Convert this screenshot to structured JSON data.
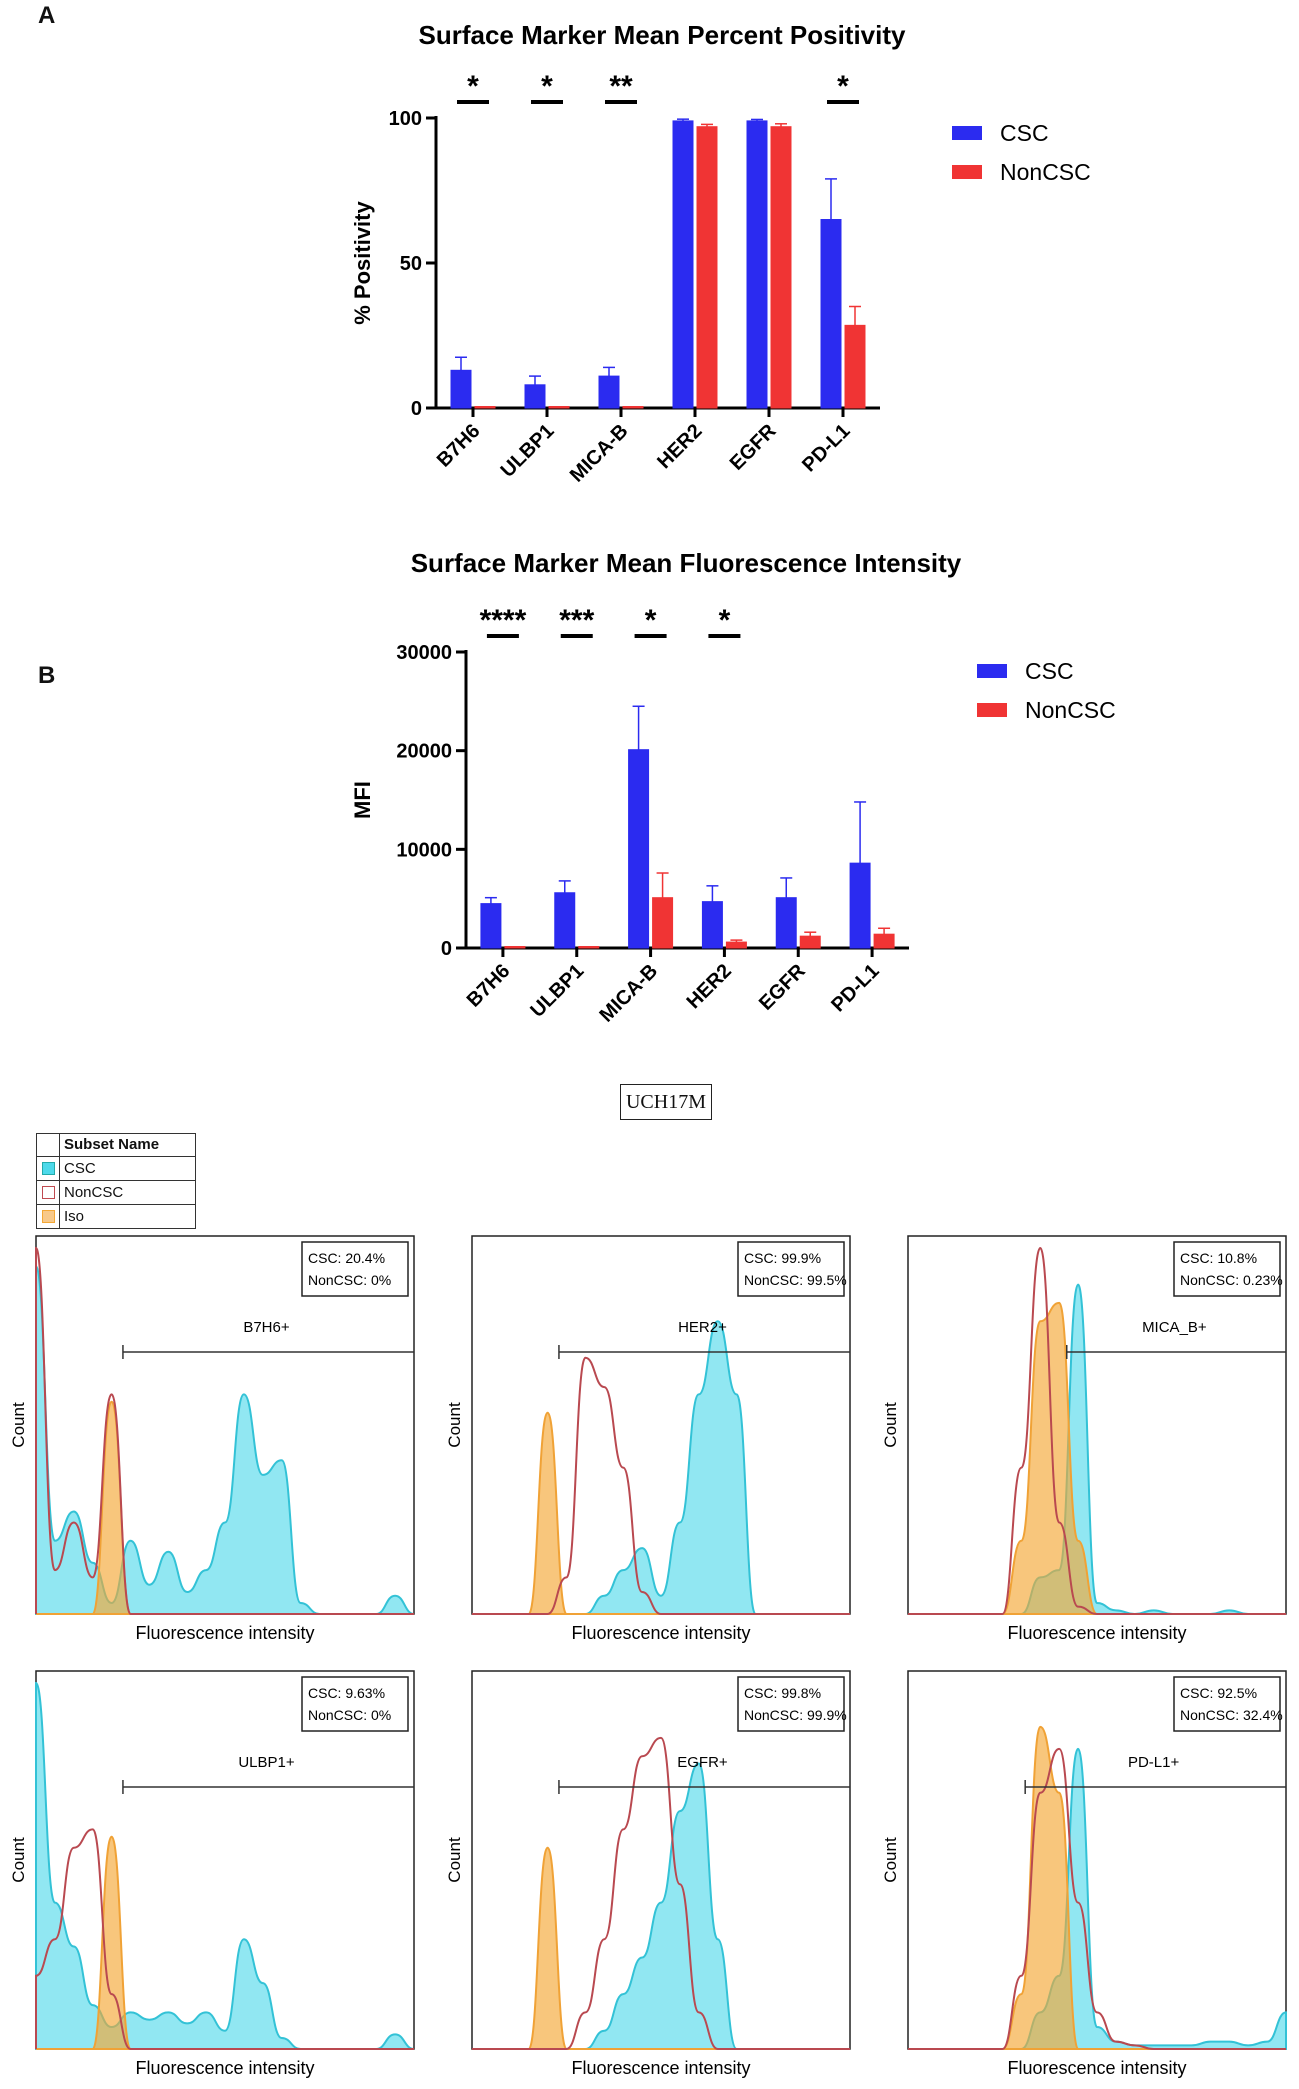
{
  "panel_labels": {
    "a": "A",
    "b": "B"
  },
  "sample_label": "UCH17M",
  "subset_legend": {
    "header": "Subset Name",
    "items": [
      {
        "name": "CSC",
        "color": "#4dd9ea"
      },
      {
        "name": "NonCSC",
        "color": "#c04a50"
      },
      {
        "name": "Iso",
        "color": "#f4a836"
      }
    ]
  },
  "histogram_axis": {
    "x_label": "Fluorescence intensity",
    "y_label": "Count"
  },
  "chart_data": [
    {
      "type": "bar",
      "title": "Surface Marker Mean Percent Positivity",
      "ylabel": "% Positivity",
      "xlabel": "",
      "categories": [
        "B7H6",
        "ULBP1",
        "MICA-B",
        "HER2",
        "EGFR",
        "PD-L1"
      ],
      "ylim": [
        0,
        100
      ],
      "yticks": [
        0,
        50,
        100
      ],
      "series": [
        {
          "name": "CSC",
          "color": "#2b2bf0",
          "values": [
            13,
            8,
            11,
            99,
            99,
            65
          ],
          "errors": [
            4.5,
            3,
            3,
            0.6,
            0.5,
            14
          ]
        },
        {
          "name": "NonCSC",
          "color": "#f03434",
          "values": [
            0,
            0,
            0,
            97,
            97,
            28.5
          ],
          "errors": [
            0,
            0,
            0,
            0.8,
            1,
            6.5
          ]
        }
      ],
      "significance": [
        "*",
        "*",
        "**",
        "",
        "",
        "*"
      ],
      "legend": "right"
    },
    {
      "type": "bar",
      "title": "Surface Marker Mean Fluorescence  Intensity",
      "ylabel": "MFI",
      "xlabel": "",
      "categories": [
        "B7H6",
        "ULBP1",
        "MICA-B",
        "HER2",
        "EGFR",
        "PD-L1"
      ],
      "ylim": [
        0,
        30000
      ],
      "yticks": [
        0,
        10000,
        20000,
        30000
      ],
      "series": [
        {
          "name": "CSC",
          "color": "#2b2bf0",
          "values": [
            4500,
            5600,
            20100,
            4700,
            5100,
            8600
          ],
          "errors": [
            600,
            1200,
            4400,
            1600,
            2000,
            6200
          ]
        },
        {
          "name": "NonCSC",
          "color": "#f03434",
          "values": [
            100,
            50,
            5100,
            600,
            1200,
            1400
          ],
          "errors": [
            0,
            0,
            2500,
            200,
            400,
            600
          ]
        }
      ],
      "significance": [
        "****",
        "***",
        "*",
        "*",
        "",
        ""
      ],
      "legend": "right"
    },
    {
      "type": "area",
      "marker": "B7H6",
      "gate_label": "B7H6+",
      "stats": [
        "CSC: 20.4%",
        "NonCSC: 0%"
      ],
      "x": [
        0,
        5,
        10,
        15,
        20,
        25,
        30,
        35,
        40,
        45,
        50,
        55,
        60,
        65,
        70,
        75,
        80,
        85,
        90,
        95,
        100
      ],
      "gate_range": [
        23,
        100
      ],
      "series": [
        {
          "name": "CSC",
          "values": [
            95,
            20,
            28,
            14,
            3,
            20,
            8,
            17,
            6,
            12,
            25,
            60,
            38,
            42,
            3,
            0,
            0,
            0,
            0,
            5,
            0
          ]
        },
        {
          "name": "NonCSC",
          "values": [
            100,
            12,
            25,
            10,
            60,
            0,
            0,
            0,
            0,
            0,
            0,
            0,
            0,
            0,
            0,
            0,
            0,
            0,
            0,
            0,
            0
          ]
        },
        {
          "name": "Iso",
          "values": [
            0,
            0,
            0,
            0,
            58,
            0,
            0,
            0,
            0,
            0,
            0,
            0,
            0,
            0,
            0,
            0,
            0,
            0,
            0,
            0,
            0
          ]
        }
      ]
    },
    {
      "type": "area",
      "marker": "HER2",
      "gate_label": "HER2+",
      "stats": [
        "CSC: 99.9%",
        "NonCSC: 99.5%"
      ],
      "x": [
        0,
        5,
        10,
        15,
        20,
        25,
        30,
        35,
        40,
        45,
        50,
        55,
        60,
        65,
        70,
        75,
        80,
        85,
        90,
        95,
        100
      ],
      "gate_range": [
        23,
        100
      ],
      "series": [
        {
          "name": "CSC",
          "values": [
            0,
            0,
            0,
            0,
            0,
            0,
            0,
            5,
            12,
            18,
            5,
            25,
            60,
            80,
            60,
            0,
            0,
            0,
            0,
            0,
            0
          ]
        },
        {
          "name": "NonCSC",
          "values": [
            0,
            0,
            0,
            0,
            0,
            10,
            70,
            62,
            40,
            6,
            0,
            0,
            0,
            0,
            0,
            0,
            0,
            0,
            0,
            0,
            0
          ]
        },
        {
          "name": "Iso",
          "values": [
            0,
            0,
            0,
            0,
            55,
            0,
            0,
            0,
            0,
            0,
            0,
            0,
            0,
            0,
            0,
            0,
            0,
            0,
            0,
            0,
            0
          ]
        }
      ]
    },
    {
      "type": "area",
      "marker": "MICA-B",
      "gate_label": "MICA_B+",
      "stats": [
        "CSC: 10.8%",
        "NonCSC: 0.23%"
      ],
      "x": [
        0,
        5,
        10,
        15,
        20,
        25,
        30,
        35,
        40,
        45,
        50,
        55,
        60,
        65,
        70,
        75,
        80,
        85,
        90,
        95,
        100
      ],
      "gate_range": [
        42,
        100
      ],
      "series": [
        {
          "name": "CSC",
          "values": [
            0,
            0,
            0,
            0,
            0,
            0,
            0,
            10,
            12,
            90,
            3,
            1,
            0,
            1,
            0,
            0,
            0,
            1,
            0,
            0,
            0
          ]
        },
        {
          "name": "NonCSC",
          "values": [
            0,
            0,
            0,
            0,
            0,
            0,
            40,
            100,
            25,
            2,
            0,
            0,
            0,
            0,
            0,
            0,
            0,
            0,
            0,
            0,
            0
          ]
        },
        {
          "name": "Iso",
          "values": [
            0,
            0,
            0,
            0,
            0,
            0,
            20,
            80,
            85,
            20,
            0,
            0,
            0,
            0,
            0,
            0,
            0,
            0,
            0,
            0,
            0
          ]
        }
      ]
    },
    {
      "type": "area",
      "marker": "ULBP1",
      "gate_label": "ULBP1+",
      "stats": [
        "CSC: 9.63%",
        "NonCSC: 0%"
      ],
      "x": [
        0,
        5,
        10,
        15,
        20,
        25,
        30,
        35,
        40,
        45,
        50,
        55,
        60,
        65,
        70,
        75,
        80,
        85,
        90,
        95,
        100
      ],
      "gate_range": [
        23,
        100
      ],
      "series": [
        {
          "name": "CSC",
          "values": [
            100,
            40,
            28,
            12,
            6,
            10,
            8,
            10,
            7,
            10,
            5,
            30,
            18,
            3,
            0,
            0,
            0,
            0,
            0,
            4,
            0
          ]
        },
        {
          "name": "NonCSC",
          "values": [
            20,
            30,
            55,
            60,
            15,
            0,
            0,
            0,
            0,
            0,
            0,
            0,
            0,
            0,
            0,
            0,
            0,
            0,
            0,
            0,
            0
          ]
        },
        {
          "name": "Iso",
          "values": [
            0,
            0,
            0,
            0,
            58,
            0,
            0,
            0,
            0,
            0,
            0,
            0,
            0,
            0,
            0,
            0,
            0,
            0,
            0,
            0,
            0
          ]
        }
      ]
    },
    {
      "type": "area",
      "marker": "EGFR",
      "gate_label": "EGFR+",
      "stats": [
        "CSC: 99.8%",
        "NonCSC: 99.9%"
      ],
      "x": [
        0,
        5,
        10,
        15,
        20,
        25,
        30,
        35,
        40,
        45,
        50,
        55,
        60,
        65,
        70,
        75,
        80,
        85,
        90,
        95,
        100
      ],
      "gate_range": [
        23,
        100
      ],
      "series": [
        {
          "name": "CSC",
          "values": [
            0,
            0,
            0,
            0,
            0,
            0,
            0,
            5,
            15,
            25,
            40,
            65,
            78,
            30,
            0,
            0,
            0,
            0,
            0,
            0,
            0
          ]
        },
        {
          "name": "NonCSC",
          "values": [
            0,
            0,
            0,
            0,
            0,
            0,
            10,
            30,
            60,
            80,
            85,
            45,
            10,
            0,
            0,
            0,
            0,
            0,
            0,
            0,
            0
          ]
        },
        {
          "name": "Iso",
          "values": [
            0,
            0,
            0,
            0,
            55,
            0,
            0,
            0,
            0,
            0,
            0,
            0,
            0,
            0,
            0,
            0,
            0,
            0,
            0,
            0,
            0
          ]
        }
      ]
    },
    {
      "type": "area",
      "marker": "PD-L1",
      "gate_label": "PD-L1+",
      "stats": [
        "CSC: 92.5%",
        "NonCSC: 32.4%"
      ],
      "x": [
        0,
        5,
        10,
        15,
        20,
        25,
        30,
        35,
        40,
        45,
        50,
        55,
        60,
        65,
        70,
        75,
        80,
        85,
        90,
        95,
        100
      ],
      "gate_range": [
        31,
        100
      ],
      "series": [
        {
          "name": "CSC",
          "values": [
            0,
            0,
            0,
            0,
            0,
            0,
            0,
            10,
            20,
            82,
            6,
            2,
            1,
            1,
            1,
            1,
            2,
            2,
            1,
            2,
            10
          ]
        },
        {
          "name": "NonCSC",
          "values": [
            0,
            0,
            0,
            0,
            0,
            0,
            20,
            70,
            82,
            40,
            10,
            2,
            1,
            0,
            0,
            0,
            0,
            0,
            0,
            0,
            0
          ]
        },
        {
          "name": "Iso",
          "values": [
            0,
            0,
            0,
            0,
            0,
            0,
            15,
            88,
            70,
            0,
            0,
            0,
            0,
            0,
            0,
            0,
            0,
            0,
            0,
            0,
            0
          ]
        }
      ]
    }
  ]
}
